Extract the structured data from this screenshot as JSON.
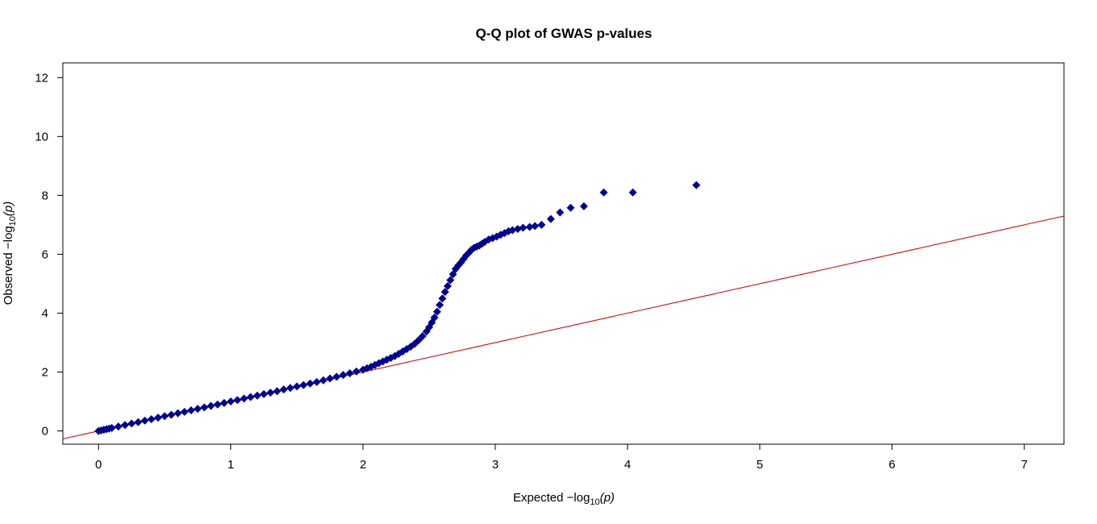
{
  "chart_data": {
    "type": "scatter",
    "title": "Q-Q plot of GWAS p-values",
    "xlabel": "Expected  −log",
    "xlabel_sub": "10",
    "xlabel_arg": "(p)",
    "ylabel": "Observed  −log",
    "ylabel_sub": "10",
    "ylabel_arg": "(p)",
    "xlim": [
      -0.27,
      7.3
    ],
    "ylim": [
      -0.45,
      12.5
    ],
    "x_ticks": [
      "0",
      "1",
      "2",
      "3",
      "4",
      "5",
      "6",
      "7"
    ],
    "y_ticks": [
      "0",
      "2",
      "4",
      "6",
      "8",
      "10",
      "12"
    ],
    "grid": false,
    "legend": "none",
    "point_color": "#00008B",
    "reference_line": {
      "slope": 1,
      "intercept": 0,
      "color": "#CC0000"
    },
    "series": [
      {
        "x": [
          0.0,
          0.02,
          0.04,
          0.06,
          0.08,
          0.1,
          0.15,
          0.2,
          0.25,
          0.3,
          0.35,
          0.4,
          0.45,
          0.5,
          0.55,
          0.6,
          0.65,
          0.7,
          0.75,
          0.8,
          0.85,
          0.9,
          0.95,
          1.0,
          1.05,
          1.1,
          1.15,
          1.2,
          1.25,
          1.3,
          1.35,
          1.4,
          1.45,
          1.5,
          1.55,
          1.6,
          1.65,
          1.7,
          1.75,
          1.8,
          1.85,
          1.9,
          1.95,
          2.0,
          2.03,
          2.06,
          2.09,
          2.12,
          2.15,
          2.18,
          2.21,
          2.24,
          2.27,
          2.3,
          2.33,
          2.36,
          2.39,
          2.42,
          2.45,
          2.48,
          2.5,
          2.52,
          2.54,
          2.56,
          2.58,
          2.6,
          2.62,
          2.64,
          2.66,
          2.68,
          2.7,
          2.72,
          2.74,
          2.76,
          2.78,
          2.8,
          2.82,
          2.84,
          2.86,
          2.88,
          2.9,
          2.92,
          2.95,
          2.98,
          3.01,
          3.04,
          3.07,
          3.1,
          3.13,
          3.17,
          3.21,
          3.26,
          3.3,
          3.35,
          3.42,
          3.49,
          3.57,
          3.67,
          3.82,
          4.04,
          4.52
        ],
        "y": [
          0.0,
          0.02,
          0.04,
          0.06,
          0.08,
          0.1,
          0.15,
          0.2,
          0.25,
          0.3,
          0.35,
          0.4,
          0.45,
          0.5,
          0.55,
          0.6,
          0.65,
          0.7,
          0.75,
          0.8,
          0.85,
          0.9,
          0.95,
          1.0,
          1.05,
          1.1,
          1.15,
          1.2,
          1.25,
          1.3,
          1.35,
          1.41,
          1.46,
          1.51,
          1.56,
          1.61,
          1.66,
          1.72,
          1.78,
          1.84,
          1.9,
          1.96,
          2.02,
          2.08,
          2.13,
          2.18,
          2.24,
          2.3,
          2.36,
          2.42,
          2.48,
          2.54,
          2.62,
          2.7,
          2.78,
          2.86,
          2.96,
          3.08,
          3.22,
          3.38,
          3.52,
          3.68,
          3.85,
          4.05,
          4.28,
          4.5,
          4.72,
          4.92,
          5.12,
          5.32,
          5.5,
          5.62,
          5.72,
          5.84,
          5.96,
          6.05,
          6.15,
          6.22,
          6.26,
          6.3,
          6.36,
          6.42,
          6.5,
          6.55,
          6.6,
          6.66,
          6.72,
          6.78,
          6.82,
          6.86,
          6.9,
          6.93,
          6.96,
          7.0,
          7.2,
          7.42,
          7.58,
          7.63,
          8.1,
          8.1,
          8.35
        ]
      }
    ]
  }
}
